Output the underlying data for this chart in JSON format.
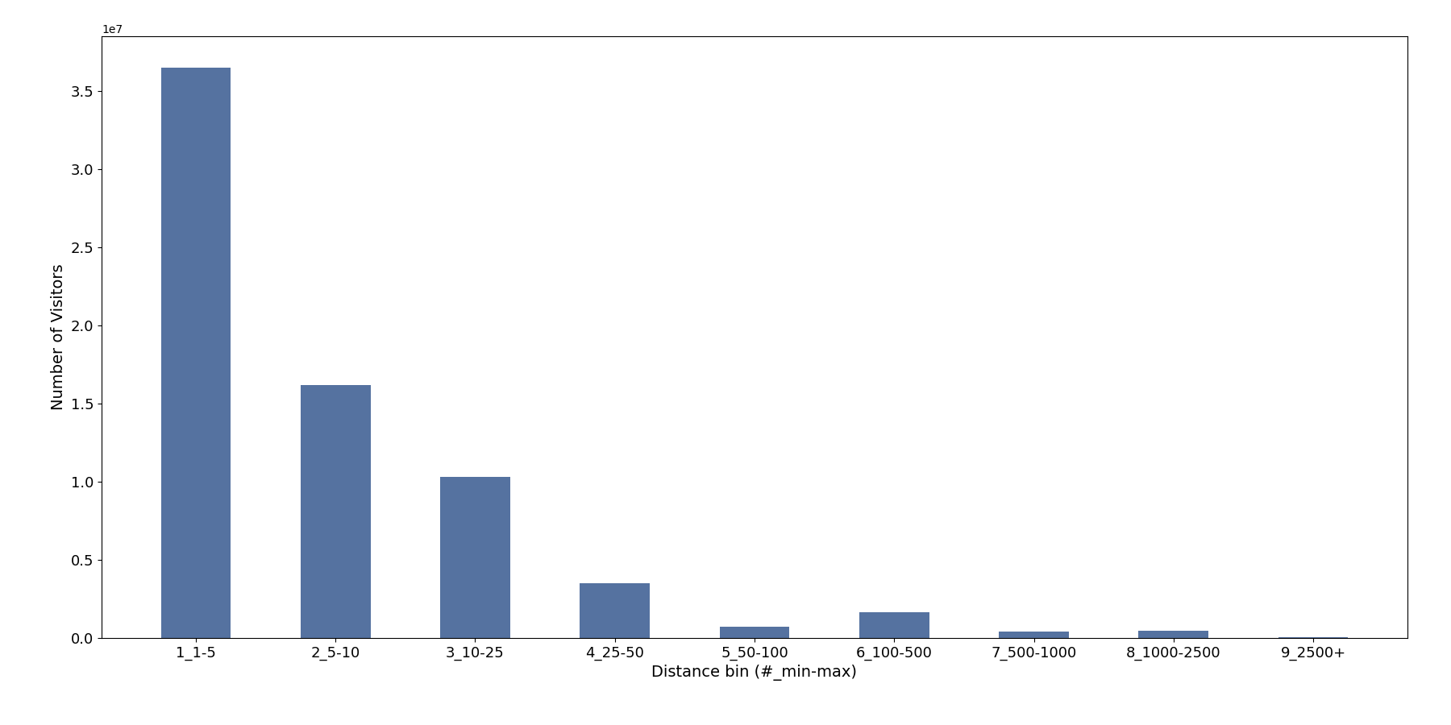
{
  "categories": [
    "1_1-5",
    "2_5-10",
    "3_10-25",
    "4_25-50",
    "5_50-100",
    "6_100-500",
    "7_500-1000",
    "8_1000-2500",
    "9_2500+"
  ],
  "values": [
    36500000,
    16200000,
    10300000,
    3500000,
    700000,
    1650000,
    400000,
    450000,
    30000
  ],
  "bar_color": "#5572a0",
  "xlabel": "Distance bin (#_min-max)",
  "ylabel": "Number of Visitors",
  "background_color": "#ffffff",
  "ylim": [
    0,
    38500000
  ],
  "figsize": [
    18.0,
    9.0
  ],
  "dpi": 100,
  "bar_width": 0.5,
  "yticks": [
    0,
    5000000,
    10000000,
    15000000,
    20000000,
    25000000,
    30000000,
    35000000
  ],
  "ytick_labels": [
    "0",
    "0.5",
    "1.0",
    "1.5",
    "2.0",
    "2.5",
    "3.0",
    "3.5"
  ]
}
